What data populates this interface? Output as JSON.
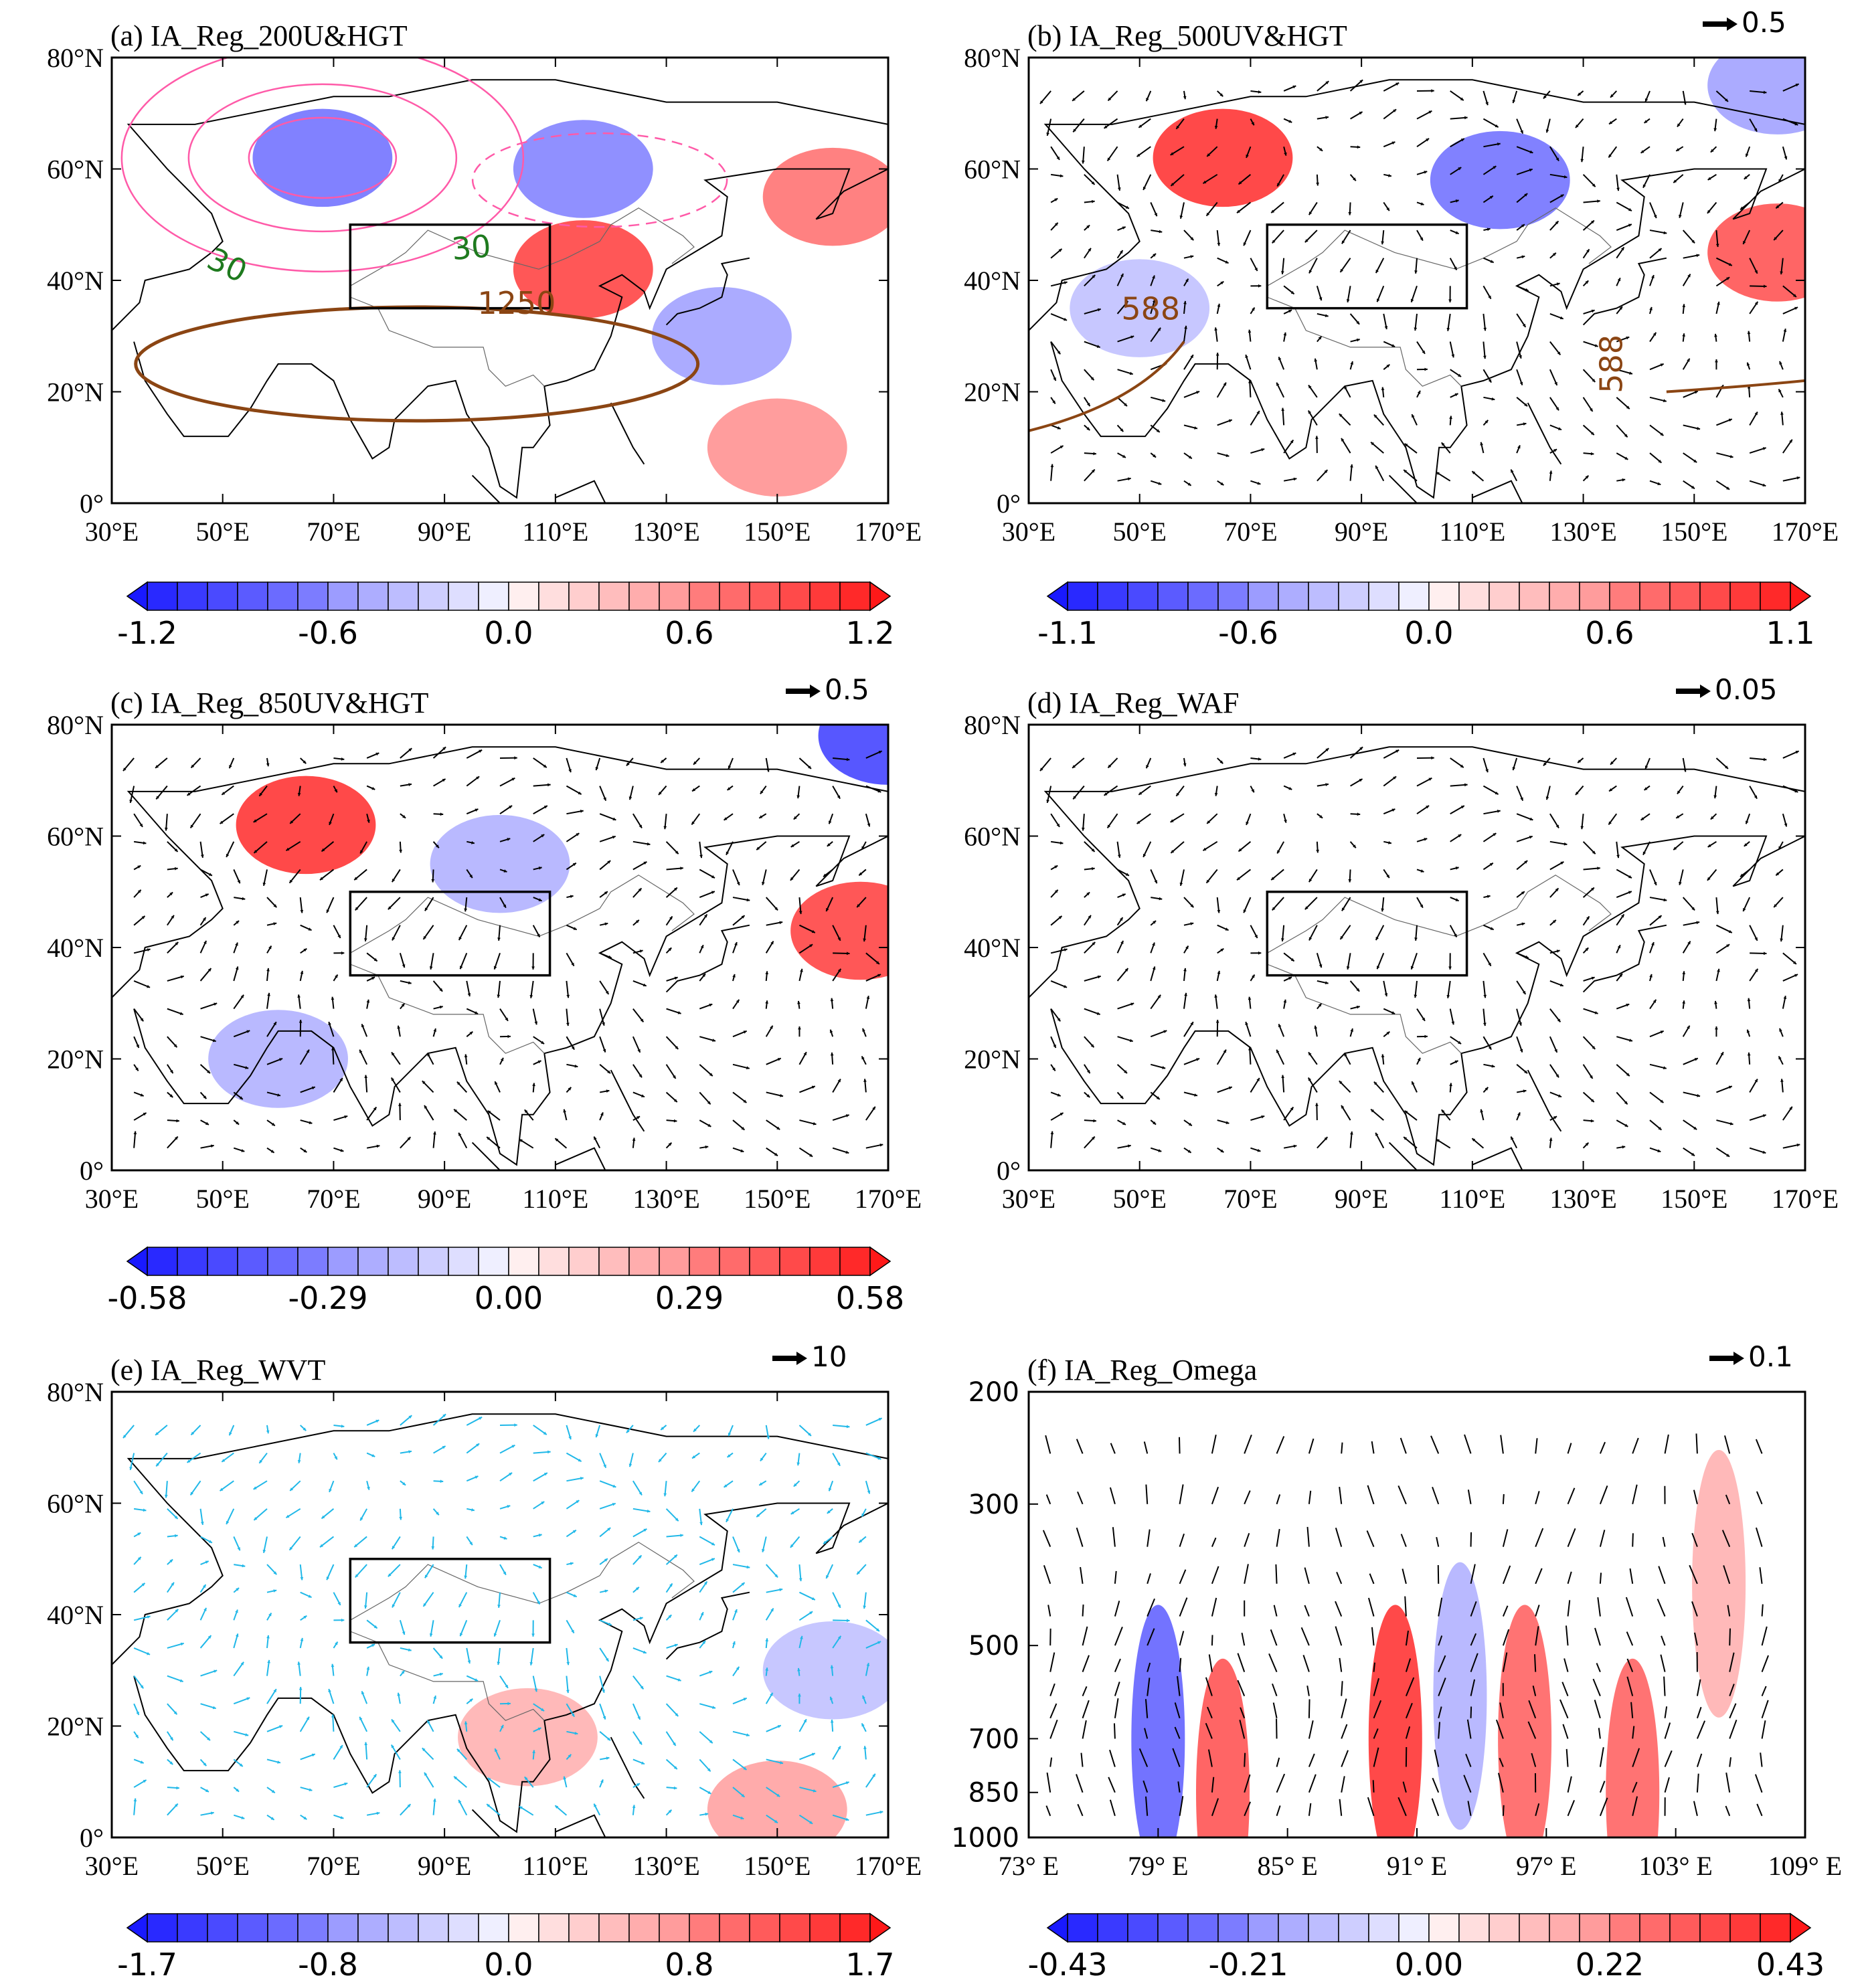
{
  "figure": {
    "panels": [
      {
        "id": "a",
        "title": "(a) IA_Reg_200U&HGT",
        "kind": "map",
        "vector_ref": null,
        "colorbar": {
          "labels": [
            "-1.2",
            "-0.6",
            "0.0",
            "0.6",
            "1.2"
          ]
        },
        "contour_labels": [
          {
            "text": "30",
            "color": "#1e7a1e"
          },
          {
            "text": "30",
            "color": "#1e7a1e"
          },
          {
            "text": "1250",
            "color": "#8b4513"
          }
        ]
      },
      {
        "id": "b",
        "title": "(b) IA_Reg_500UV&HGT",
        "kind": "map",
        "vector_ref": "0.5",
        "colorbar": {
          "labels": [
            "-1.1",
            "-0.6",
            "0.0",
            "0.6",
            "1.1"
          ]
        },
        "contour_labels": [
          {
            "text": "588",
            "color": "#8b4513"
          },
          {
            "text": "588",
            "color": "#8b4513"
          }
        ]
      },
      {
        "id": "c",
        "title": "(c) IA_Reg_850UV&HGT",
        "kind": "map",
        "vector_ref": "0.5",
        "colorbar": {
          "labels": [
            "-0.58",
            "-0.29",
            "0.00",
            "0.29",
            "0.58"
          ]
        },
        "contour_labels": []
      },
      {
        "id": "d",
        "title": "(d) IA_Reg_WAF",
        "kind": "map",
        "vector_ref": "0.05",
        "colorbar": null,
        "contour_labels": []
      },
      {
        "id": "e",
        "title": "(e) IA_Reg_WVT",
        "kind": "map",
        "vector_ref": "10",
        "colorbar": {
          "labels": [
            "-1.7",
            "-0.8",
            "0.0",
            "0.8",
            "1.7"
          ]
        },
        "contour_labels": []
      },
      {
        "id": "f",
        "title": "(f) IA_Reg_Omega",
        "kind": "section",
        "vector_ref": "0.1",
        "colorbar": {
          "labels": [
            "-0.43",
            "-0.21",
            "0.00",
            "0.22",
            "0.43"
          ]
        },
        "contour_labels": []
      }
    ]
  },
  "chart_data": {
    "type": "heatmap",
    "map_axes": {
      "x_ticks": [
        "30°E",
        "50°E",
        "70°E",
        "90°E",
        "110°E",
        "130°E",
        "150°E",
        "170°E"
      ],
      "x_range": [
        30,
        170
      ],
      "y_ticks": [
        "0°",
        "20°N",
        "40°N",
        "60°N",
        "80°N"
      ],
      "y_range": [
        0,
        80
      ]
    },
    "section_axes": {
      "x_ticks": [
        "73° E",
        "79° E",
        "85° E",
        "91° E",
        "97° E",
        "103° E",
        "109° E"
      ],
      "x_range": [
        73,
        109
      ],
      "y_ticks": [
        "200",
        "300",
        "500",
        "700",
        "850",
        "1000"
      ],
      "y_range": [
        1000,
        200
      ],
      "y_scale": "log"
    },
    "target_box": {
      "lon": [
        73,
        109
      ],
      "lat": [
        35,
        50
      ]
    },
    "colormap": "blue-white-red",
    "colors": {
      "negative": "#1919ff",
      "neutral": "#ffffff",
      "positive": "#ff1919"
    },
    "anomaly_centers": [
      {
        "panel": "a",
        "lon": 115,
        "lat": 42,
        "value": 1.0
      },
      {
        "panel": "a",
        "lon": 160,
        "lat": 55,
        "value": 0.8
      },
      {
        "panel": "a",
        "lon": 68,
        "lat": 62,
        "value": -0.8
      },
      {
        "panel": "a",
        "lon": 115,
        "lat": 60,
        "value": -0.7
      },
      {
        "panel": "a",
        "lon": 140,
        "lat": 30,
        "value": -0.5
      },
      {
        "panel": "a",
        "lon": 150,
        "lat": 10,
        "value": 0.6
      },
      {
        "panel": "b",
        "lon": 65,
        "lat": 62,
        "value": 1.0
      },
      {
        "panel": "b",
        "lon": 165,
        "lat": 45,
        "value": 0.9
      },
      {
        "panel": "b",
        "lon": 115,
        "lat": 58,
        "value": -0.7
      },
      {
        "panel": "b",
        "lon": 165,
        "lat": 75,
        "value": -0.5
      },
      {
        "panel": "b",
        "lon": 50,
        "lat": 35,
        "value": -0.3
      },
      {
        "panel": "c",
        "lon": 65,
        "lat": 62,
        "value": 0.55
      },
      {
        "panel": "c",
        "lon": 165,
        "lat": 43,
        "value": 0.5
      },
      {
        "panel": "c",
        "lon": 170,
        "lat": 78,
        "value": -0.5
      },
      {
        "panel": "c",
        "lon": 100,
        "lat": 55,
        "value": -0.2
      },
      {
        "panel": "c",
        "lon": 60,
        "lat": 20,
        "value": -0.2
      },
      {
        "panel": "e",
        "lon": 105,
        "lat": 18,
        "value": 0.6
      },
      {
        "panel": "e",
        "lon": 150,
        "lat": 5,
        "value": 0.7
      },
      {
        "panel": "e",
        "lon": 160,
        "lat": 30,
        "value": -0.5
      },
      {
        "panel": "f",
        "lon": 90,
        "p": 700,
        "value": 0.4
      },
      {
        "panel": "f",
        "lon": 82,
        "p": 850,
        "value": 0.35
      },
      {
        "panel": "f",
        "lon": 79,
        "p": 700,
        "value": -0.3
      },
      {
        "panel": "f",
        "lon": 96,
        "p": 700,
        "value": 0.3
      },
      {
        "panel": "f",
        "lon": 101,
        "p": 850,
        "value": 0.3
      },
      {
        "panel": "f",
        "lon": 105,
        "p": 400,
        "value": 0.15
      },
      {
        "panel": "f",
        "lon": 93,
        "p": 600,
        "value": -0.15
      }
    ],
    "grid": false,
    "legend": "none"
  }
}
